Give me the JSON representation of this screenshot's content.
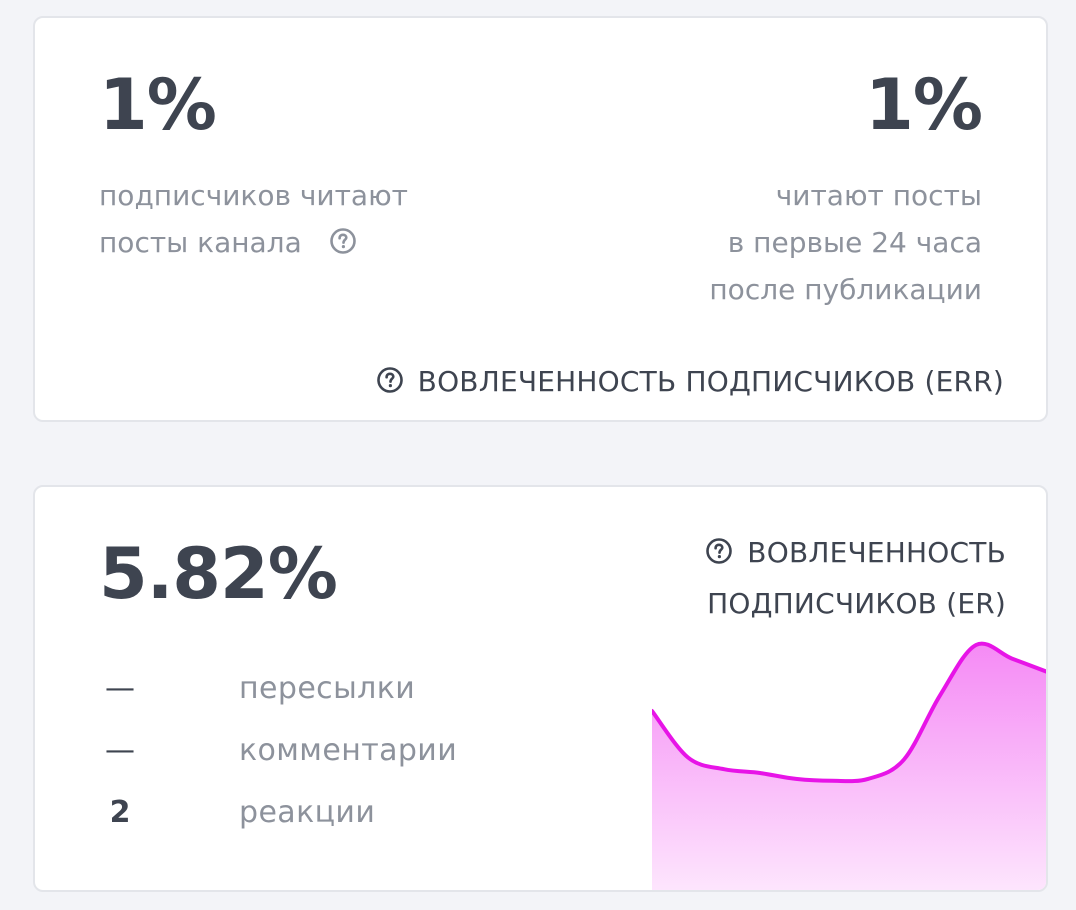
{
  "err_card": {
    "left_value": "1%",
    "left_caption_line1": "подписчиков читают",
    "left_caption_line2": "посты канала",
    "right_value": "1%",
    "right_caption_line1": "читают посты",
    "right_caption_line2": "в первые 24 часа",
    "right_caption_line3": "после публикации",
    "footer_label": "ВОВЛЕЧЕННОСТЬ ПОДПИСЧИКОВ (ERR)"
  },
  "er_card": {
    "value": "5.82%",
    "title_line1": "ВОВЛЕЧЕННОСТЬ",
    "title_line2": "ПОДПИСЧИКОВ (ER)",
    "stats": [
      {
        "count": "—",
        "label": "пересылки"
      },
      {
        "count": "—",
        "label": "комментарии"
      },
      {
        "count": "2",
        "label": "реакции"
      }
    ],
    "sparkline": {
      "values": [
        0.66,
        0.42,
        0.36,
        0.34,
        0.31,
        0.3,
        0.31,
        0.41,
        0.74,
        1.0,
        0.93,
        0.86
      ],
      "stroke_color": "#e714e7",
      "fill_top_color": "#f58af5",
      "fill_bottom_color": "#fde5fd"
    }
  },
  "colors": {
    "background": "#f3f4f8",
    "card": "#ffffff",
    "primary_text": "#3e4450",
    "muted_text": "#8d929c"
  }
}
